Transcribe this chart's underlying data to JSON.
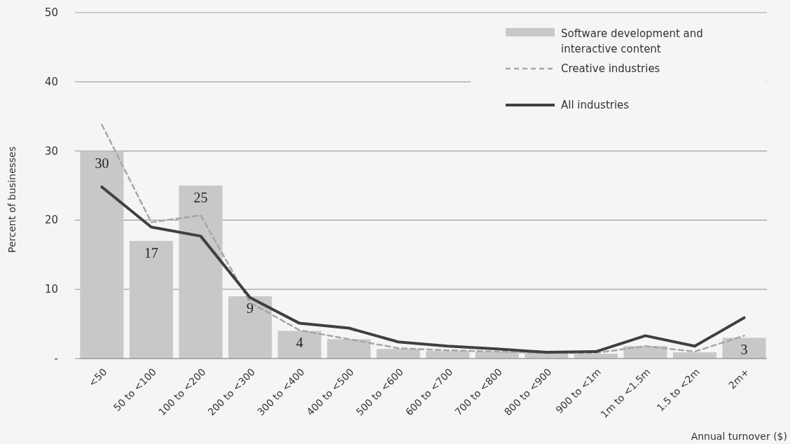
{
  "chart_data": {
    "type": "bar",
    "xlabel": "Annual turnover ($)",
    "ylabel": "Percent of businesses",
    "categories": [
      "<50",
      "50 to <100",
      "100 to <200",
      "200 to <300",
      "300 to <400",
      "400 to <500",
      "500 to <600",
      "600 to <700",
      "700 to <800",
      "800 to <900",
      "900 to <1m",
      "1m to <1.5m",
      "1.5 to <2m",
      "2m+"
    ],
    "series": [
      {
        "name": "Software development and interactive content",
        "color": "#c8c8c8",
        "values": [
          30,
          17,
          25,
          9,
          4,
          2.8,
          1.4,
          1.1,
          1.0,
          0.9,
          0.7,
          1.8,
          0.9,
          3
        ],
        "value_labels": [
          "30",
          "17",
          "25",
          "9",
          "4",
          null,
          null,
          null,
          null,
          null,
          null,
          null,
          null,
          "3"
        ]
      },
      {
        "name": "Creative industries",
        "type": "line",
        "color": "#a6a6a6",
        "line_style": "dashed",
        "values": [
          33.8,
          19.7,
          20.7,
          8.1,
          4.1,
          2.8,
          1.5,
          1.2,
          1.0,
          0.8,
          0.8,
          1.8,
          1.0,
          3.3
        ]
      },
      {
        "name": "All industries",
        "type": "line",
        "color": "#404040",
        "line_style": "solid",
        "values": [
          24.8,
          19,
          17.7,
          8.8,
          5.1,
          4.4,
          2.4,
          1.8,
          1.4,
          0.9,
          1.0,
          3.3,
          1.8,
          5.9
        ]
      }
    ],
    "ylim": [
      0,
      50
    ],
    "yticks": [
      {
        "value": 0,
        "label": "-"
      },
      10,
      20,
      30,
      40,
      50
    ],
    "grid": "y",
    "legend": "top right",
    "marker": "none"
  }
}
